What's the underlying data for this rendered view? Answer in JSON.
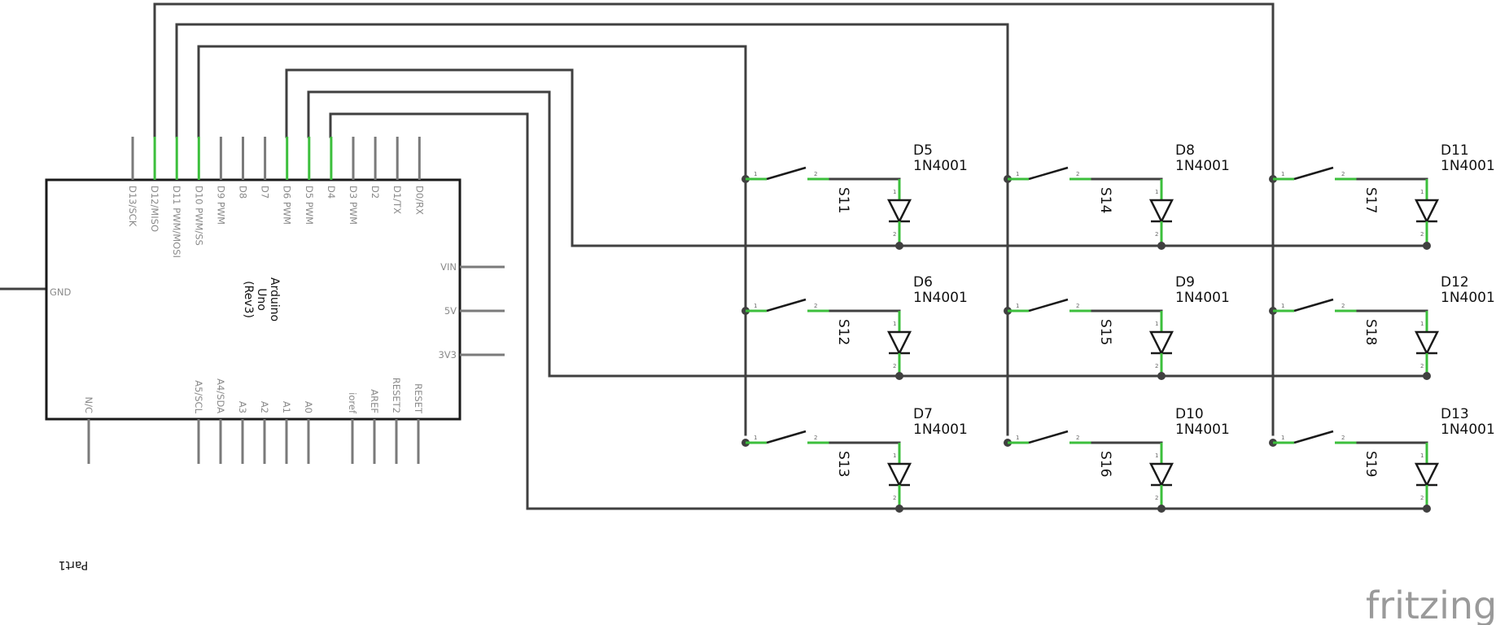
{
  "arduino": {
    "title_lines": [
      "Arduino",
      "Uno",
      "(Rev3)"
    ],
    "top_pins": [
      "D13/SCK",
      "D12/MISO",
      "D11 PWM/MOSI",
      "D10 PWM/SS",
      "D9 PWM",
      "D8",
      "D7",
      "D6 PWM",
      "D5 PWM",
      "D4",
      "D3 PWM",
      "D2",
      "D1/TX",
      "D0/RX"
    ],
    "right_pins": [
      "VIN",
      "5V",
      "3V3"
    ],
    "bottom_pins": [
      "N/C",
      "A5/SCL",
      "A4/SDA",
      "A3",
      "A2",
      "A1",
      "A0",
      "ioref",
      "AREF",
      "RESET2",
      "RESET"
    ],
    "left_pin": "GND",
    "connected_top_pins": [
      "D12/MISO",
      "D11 PWM/MOSI",
      "D10 PWM/SS",
      "D6 PWM",
      "D5 PWM",
      "D4"
    ]
  },
  "matrix": {
    "cells": [
      {
        "switch": "S11",
        "diode": "D5",
        "part": "1N4001"
      },
      {
        "switch": "S14",
        "diode": "D8",
        "part": "1N4001"
      },
      {
        "switch": "S17",
        "diode": "D11",
        "part": "1N4001"
      },
      {
        "switch": "S12",
        "diode": "D6",
        "part": "1N4001"
      },
      {
        "switch": "S15",
        "diode": "D9",
        "part": "1N4001"
      },
      {
        "switch": "S18",
        "diode": "D12",
        "part": "1N4001"
      },
      {
        "switch": "S13",
        "diode": "D7",
        "part": "1N4001"
      },
      {
        "switch": "S16",
        "diode": "D10",
        "part": "1N4001"
      },
      {
        "switch": "S19",
        "diode": "D13",
        "part": "1N4001"
      }
    ],
    "switch_pin_labels": [
      "1",
      "2"
    ],
    "diode_pin_labels": [
      "1",
      "2"
    ]
  },
  "footer": {
    "part_label": "Part1",
    "logo": "fritzing"
  },
  "colors": {
    "wire": "#404040",
    "lead": "#3cbf3c",
    "pin": "#7a7a7a",
    "text": "#111111",
    "logo": "#9a9a9a"
  }
}
